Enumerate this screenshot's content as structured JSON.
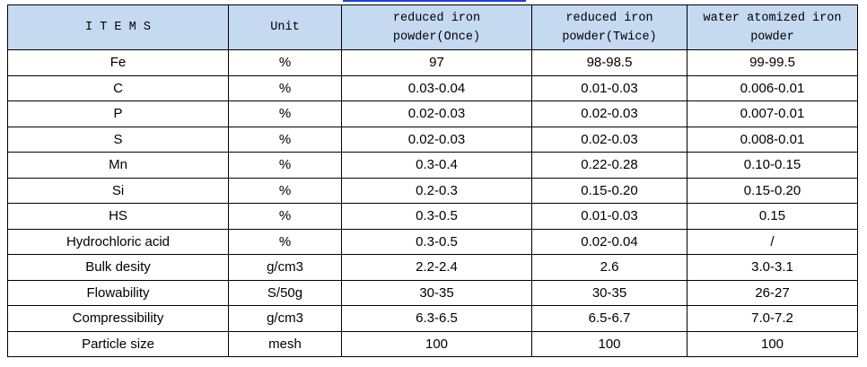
{
  "table": {
    "header": [
      "I T E M S",
      "Unit",
      "reduced iron powder(Once)",
      "reduced iron powder(Twice)",
      "water atomized iron powder"
    ],
    "rows": [
      [
        "Fe",
        "%",
        "97",
        "98-98.5",
        "99-99.5"
      ],
      [
        "C",
        "%",
        "0.03-0.04",
        "0.01-0.03",
        "0.006-0.01"
      ],
      [
        "P",
        "%",
        "0.02-0.03",
        "0.02-0.03",
        "0.007-0.01"
      ],
      [
        "S",
        "%",
        "0.02-0.03",
        "0.02-0.03",
        "0.008-0.01"
      ],
      [
        "Mn",
        "%",
        "0.3-0.4",
        "0.22-0.28",
        "0.10-0.15"
      ],
      [
        "Si",
        "%",
        "0.2-0.3",
        "0.15-0.20",
        "0.15-0.20"
      ],
      [
        "HS",
        "%",
        "0.3-0.5",
        "0.01-0.03",
        "0.15"
      ],
      [
        "Hydrochloric acid",
        "%",
        "0.3-0.5",
        "0.02-0.04",
        "/"
      ],
      [
        "Bulk desity",
        "g/cm3",
        "2.2-2.4",
        "2.6",
        "3.0-3.1"
      ],
      [
        "Flowability",
        "S/50g",
        "30-35",
        "30-35",
        "26-27"
      ],
      [
        "Compressibility",
        "g/cm3",
        "6.3-6.5",
        "6.5-6.7",
        "7.0-7.2"
      ],
      [
        "Particle size",
        "mesh",
        "100",
        "100",
        "100"
      ]
    ]
  }
}
